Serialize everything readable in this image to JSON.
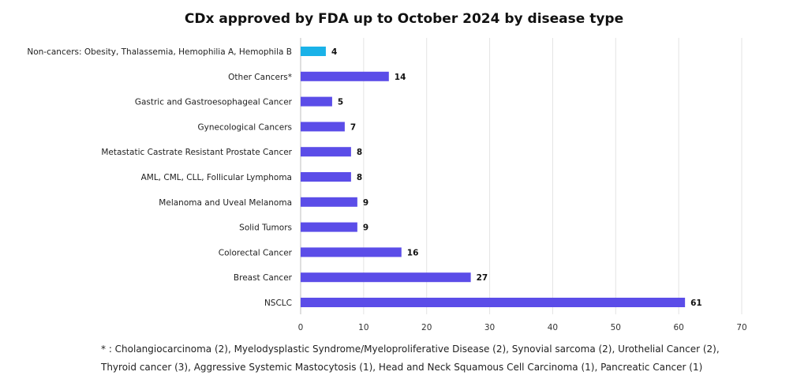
{
  "chart_data": {
    "type": "bar",
    "orientation": "horizontal",
    "title": "CDx approved by FDA up to October 2024 by disease type",
    "categories": [
      "Non-cancers: Obesity, Thalassemia, Hemophilia A, Hemophila B",
      "Other Cancers*",
      "Gastric and Gastroesophageal Cancer",
      "Gynecological Cancers",
      "Metastatic Castrate Resistant Prostate Cancer",
      "AML, CML, CLL, Follicular Lymphoma",
      "Melanoma and Uveal Melanoma",
      "Solid Tumors",
      "Colorectal Cancer",
      "Breast Cancer",
      "NSCLC"
    ],
    "values": [
      4,
      14,
      5,
      7,
      8,
      8,
      9,
      9,
      16,
      27,
      61
    ],
    "bar_colors": [
      "#1ab2e8",
      "#5b4de8",
      "#5b4de8",
      "#5b4de8",
      "#5b4de8",
      "#5b4de8",
      "#5b4de8",
      "#5b4de8",
      "#5b4de8",
      "#5b4de8",
      "#5b4de8"
    ],
    "xlim": [
      0,
      70
    ],
    "xticks": [
      0,
      10,
      20,
      30,
      40,
      50,
      60,
      70
    ],
    "grid": "vertical",
    "xlabel": "",
    "ylabel": ""
  },
  "footnote": {
    "line1": "* : Cholangiocarcinoma (2), Myelodysplastic Syndrome/Myeloproliferative Disease (2), Synovial sarcoma (2), Urothelial Cancer (2),",
    "line2": "Thyroid cancer (3), Aggressive Systemic Mastocytosis (1), Head and Neck Squamous Cell Carcinoma (1), Pancreatic Cancer (1)"
  }
}
